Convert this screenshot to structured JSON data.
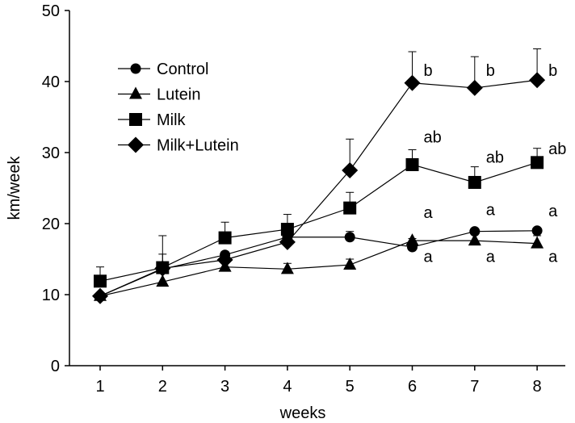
{
  "chart_data": {
    "type": "line",
    "title": "",
    "xlabel": "weeks",
    "ylabel": "km/week",
    "x": [
      1,
      2,
      3,
      4,
      5,
      6,
      7,
      8
    ],
    "x_ticks": [
      "1",
      "2",
      "3",
      "4",
      "5",
      "6",
      "7",
      "8"
    ],
    "y_ticks": [
      "0",
      "10",
      "20",
      "30",
      "40",
      "50"
    ],
    "ylim": [
      0,
      50
    ],
    "grid": false,
    "legend_position": "top-left",
    "series": [
      {
        "name": "Control",
        "marker": "circle",
        "values": [
          9.8,
          13.6,
          15.6,
          18.1,
          18.1,
          16.7,
          18.9,
          19.0
        ],
        "errors": [
          0,
          0,
          0,
          0,
          0.8,
          1.2,
          0,
          0
        ]
      },
      {
        "name": "Lutein",
        "marker": "triangle",
        "values": [
          9.8,
          11.8,
          13.9,
          13.6,
          14.2,
          17.6,
          17.6,
          17.2
        ],
        "errors": [
          0,
          0,
          0,
          0.8,
          0.8,
          0,
          0,
          1.1
        ]
      },
      {
        "name": "Milk",
        "marker": "square",
        "values": [
          11.9,
          13.8,
          18.0,
          19.2,
          22.2,
          28.3,
          25.8,
          28.6
        ],
        "errors": [
          2.0,
          1.9,
          2.2,
          2.1,
          2.2,
          2.1,
          2.2,
          2.0
        ]
      },
      {
        "name": "Milk+Lutein",
        "marker": "diamond",
        "values": [
          9.8,
          13.7,
          14.9,
          17.4,
          27.5,
          39.8,
          39.1,
          40.2
        ],
        "errors": [
          0,
          4.6,
          0,
          0,
          4.4,
          4.4,
          4.4,
          4.4
        ]
      }
    ],
    "annotations": [
      {
        "text": "b",
        "x": 6,
        "y": 40.8
      },
      {
        "text": "b",
        "x": 7,
        "y": 40.8
      },
      {
        "text": "b",
        "x": 8,
        "y": 40.8
      },
      {
        "text": "ab",
        "x": 6,
        "y": 31.4
      },
      {
        "text": "ab",
        "x": 7,
        "y": 28.6
      },
      {
        "text": "ab",
        "x": 8,
        "y": 29.8
      },
      {
        "text": "a",
        "x": 6,
        "y": 20.8
      },
      {
        "text": "a",
        "x": 7,
        "y": 21.2
      },
      {
        "text": "a",
        "x": 8,
        "y": 21.0
      },
      {
        "text": "a",
        "x": 6,
        "y": 14.6
      },
      {
        "text": "a",
        "x": 7,
        "y": 14.6
      },
      {
        "text": "a",
        "x": 8,
        "y": 14.6
      }
    ]
  }
}
